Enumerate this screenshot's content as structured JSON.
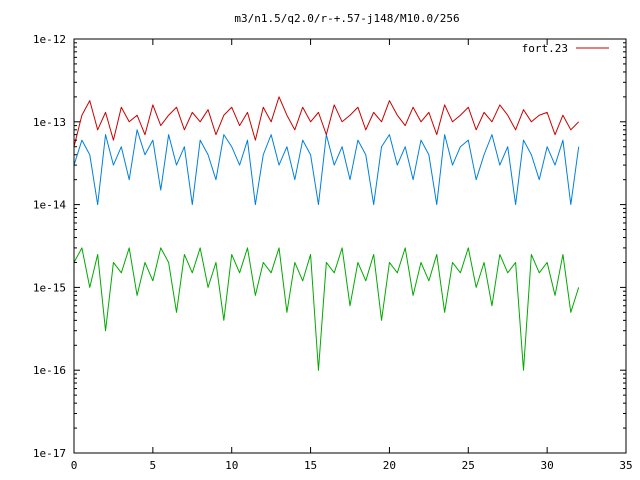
{
  "chart_data": {
    "type": "line",
    "title": "m3/n1.5/q2.0/r-+.57-j148/M10.0/256",
    "xlabel": "",
    "ylabel": "",
    "xlim": [
      0,
      35
    ],
    "ylim": [
      1e-17,
      1e-12
    ],
    "yscale": "log",
    "grid": false,
    "legend_position": "top-right",
    "x_ticks": [
      0,
      5,
      10,
      15,
      20,
      25,
      30,
      35
    ],
    "x_tick_labels": [
      "0",
      "5",
      "10",
      "15",
      "20",
      "25",
      "30",
      "35"
    ],
    "y_ticks": [
      1e-17,
      1e-16,
      1e-15,
      1e-14,
      1e-13,
      1e-12
    ],
    "y_tick_labels": [
      "1e-17",
      "1e-16",
      "1e-15",
      "1e-14",
      "1e-13",
      "1e-12"
    ],
    "series": [
      {
        "name": "fort.23",
        "color": "#cc0000",
        "x": [
          0,
          0.5,
          1,
          1.5,
          2,
          2.5,
          3,
          3.5,
          4,
          4.5,
          5,
          5.5,
          6,
          6.5,
          7,
          7.5,
          8,
          8.5,
          9,
          9.5,
          10,
          10.5,
          11,
          11.5,
          12,
          12.5,
          13,
          13.5,
          14,
          14.5,
          15,
          15.5,
          16,
          16.5,
          17,
          17.5,
          18,
          18.5,
          19,
          19.5,
          20,
          20.5,
          21,
          21.5,
          22,
          22.5,
          23,
          23.5,
          24,
          24.5,
          25,
          25.5,
          26,
          26.5,
          27,
          27.5,
          28,
          28.5,
          29,
          29.5,
          30,
          30.5,
          31,
          31.5,
          32
        ],
        "y": [
          5e-14,
          1.2e-13,
          1.8e-13,
          8e-14,
          1.3e-13,
          6e-14,
          1.5e-13,
          1e-13,
          1.2e-13,
          7e-14,
          1.6e-13,
          9e-14,
          1.2e-13,
          1.5e-13,
          8e-14,
          1.3e-13,
          1e-13,
          1.4e-13,
          7e-14,
          1.2e-13,
          1.5e-13,
          9e-14,
          1.3e-13,
          6e-14,
          1.5e-13,
          1e-13,
          2e-13,
          1.2e-13,
          8e-14,
          1.5e-13,
          1e-13,
          1.3e-13,
          7e-14,
          1.6e-13,
          1e-13,
          1.2e-13,
          1.5e-13,
          8e-14,
          1.3e-13,
          1e-13,
          1.8e-13,
          1.2e-13,
          9e-14,
          1.5e-13,
          1e-13,
          1.3e-13,
          7e-14,
          1.6e-13,
          1e-13,
          1.2e-13,
          1.5e-13,
          8e-14,
          1.3e-13,
          1e-13,
          1.6e-13,
          1.2e-13,
          8e-14,
          1.4e-13,
          1e-13,
          1.2e-13,
          1.3e-13,
          7e-14,
          1.2e-13,
          8e-14,
          1e-13
        ]
      },
      {
        "name": "",
        "color": "#0080dd",
        "x": [
          0,
          0.5,
          1,
          1.5,
          2,
          2.5,
          3,
          3.5,
          4,
          4.5,
          5,
          5.5,
          6,
          6.5,
          7,
          7.5,
          8,
          8.5,
          9,
          9.5,
          10,
          10.5,
          11,
          11.5,
          12,
          12.5,
          13,
          13.5,
          14,
          14.5,
          15,
          15.5,
          16,
          16.5,
          17,
          17.5,
          18,
          18.5,
          19,
          19.5,
          20,
          20.5,
          21,
          21.5,
          22,
          22.5,
          23,
          23.5,
          24,
          24.5,
          25,
          25.5,
          26,
          26.5,
          27,
          27.5,
          28,
          28.5,
          29,
          29.5,
          30,
          30.5,
          31,
          31.5,
          32
        ],
        "y": [
          3e-14,
          6e-14,
          4e-14,
          1e-14,
          7e-14,
          3e-14,
          5e-14,
          2e-14,
          8e-14,
          4e-14,
          6e-14,
          1.5e-14,
          7e-14,
          3e-14,
          5e-14,
          1e-14,
          6e-14,
          4e-14,
          2e-14,
          7e-14,
          5e-14,
          3e-14,
          6e-14,
          1e-14,
          4e-14,
          7e-14,
          3e-14,
          5e-14,
          2e-14,
          6e-14,
          4e-14,
          1e-14,
          7e-14,
          3e-14,
          5e-14,
          2e-14,
          6e-14,
          4e-14,
          1e-14,
          5e-14,
          7e-14,
          3e-14,
          5e-14,
          2e-14,
          6e-14,
          4e-14,
          1e-14,
          7e-14,
          3e-14,
          5e-14,
          6e-14,
          2e-14,
          4e-14,
          7e-14,
          3e-14,
          5e-14,
          1e-14,
          6e-14,
          4e-14,
          2e-14,
          5e-14,
          3e-14,
          6e-14,
          1e-14,
          5e-14
        ]
      },
      {
        "name": "",
        "color": "#00aa00",
        "x": [
          0,
          0.5,
          1,
          1.5,
          2,
          2.5,
          3,
          3.5,
          4,
          4.5,
          5,
          5.5,
          6,
          6.5,
          7,
          7.5,
          8,
          8.5,
          9,
          9.5,
          10,
          10.5,
          11,
          11.5,
          12,
          12.5,
          13,
          13.5,
          14,
          14.5,
          15,
          15.5,
          16,
          16.5,
          17,
          17.5,
          18,
          18.5,
          19,
          19.5,
          20,
          20.5,
          21,
          21.5,
          22,
          22.5,
          23,
          23.5,
          24,
          24.5,
          25,
          25.5,
          26,
          26.5,
          27,
          27.5,
          28,
          28.5,
          29,
          29.5,
          30,
          30.5,
          31,
          31.5,
          32
        ],
        "y": [
          2e-15,
          3e-15,
          1e-15,
          2.5e-15,
          3e-16,
          2e-15,
          1.5e-15,
          3e-15,
          8e-16,
          2e-15,
          1.2e-15,
          3e-15,
          2e-15,
          5e-16,
          2.5e-15,
          1.5e-15,
          3e-15,
          1e-15,
          2e-15,
          4e-16,
          2.5e-15,
          1.5e-15,
          3e-15,
          8e-16,
          2e-15,
          1.5e-15,
          3e-15,
          5e-16,
          2e-15,
          1.2e-15,
          2.5e-15,
          1e-16,
          2e-15,
          1.5e-15,
          3e-15,
          6e-16,
          2e-15,
          1.2e-15,
          2.5e-15,
          4e-16,
          2e-15,
          1.5e-15,
          3e-15,
          8e-16,
          2e-15,
          1.2e-15,
          2.5e-15,
          5e-16,
          2e-15,
          1.5e-15,
          3e-15,
          1e-15,
          2e-15,
          6e-16,
          2.5e-15,
          1.5e-15,
          2e-15,
          1e-16,
          2.5e-15,
          1.5e-15,
          2e-15,
          8e-16,
          2.5e-15,
          5e-16,
          1e-15
        ]
      }
    ]
  }
}
